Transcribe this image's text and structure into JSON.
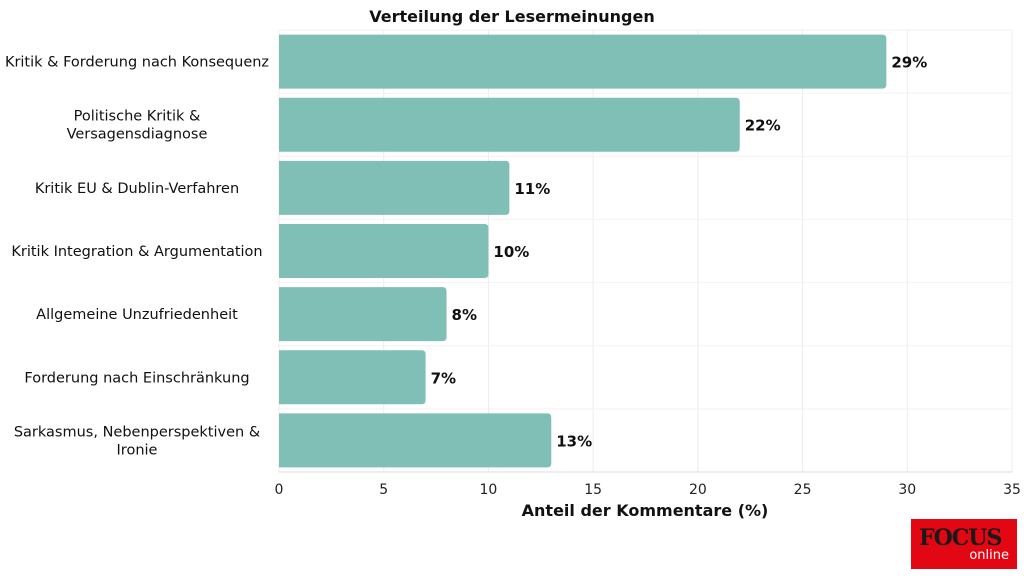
{
  "chart_data": {
    "type": "bar",
    "orientation": "horizontal",
    "title": "Verteilung der Lesermeinungen",
    "xlabel": "Anteil der Kommentare (%)",
    "ylabel": "",
    "xlim": [
      0,
      35
    ],
    "xticks": [
      0,
      5,
      10,
      15,
      20,
      25,
      30,
      35
    ],
    "grid": true,
    "categories": [
      "Kritik & Forderung nach Konsequenz",
      "Politische Kritik & Versagensdiagnose",
      "Kritik EU & Dublin-Verfahren",
      "Kritik Integration & Argumentation",
      "Allgemeine Unzufriedenheit",
      "Forderung nach Einschränkung",
      "Sarkasmus, Nebenperspektiven & Ironie"
    ],
    "category_lines": [
      [
        "Kritik & Forderung nach Konsequenz"
      ],
      [
        "Politische Kritik &",
        "Versagensdiagnose"
      ],
      [
        "Kritik EU & Dublin-Verfahren"
      ],
      [
        "Kritik Integration & Argumentation"
      ],
      [
        "Allgemeine Unzufriedenheit"
      ],
      [
        "Forderung nach Einschränkung"
      ],
      [
        "Sarkasmus, Nebenperspektiven &",
        "Ironie"
      ]
    ],
    "values": [
      29,
      22,
      11,
      10,
      8,
      7,
      13
    ],
    "labels": [
      "29%",
      "22%",
      "11%",
      "10%",
      "8%",
      "7%",
      "13%"
    ],
    "bar_color": "#80bfb5"
  },
  "logo": {
    "brand": "FOCUS",
    "sub": "online"
  }
}
